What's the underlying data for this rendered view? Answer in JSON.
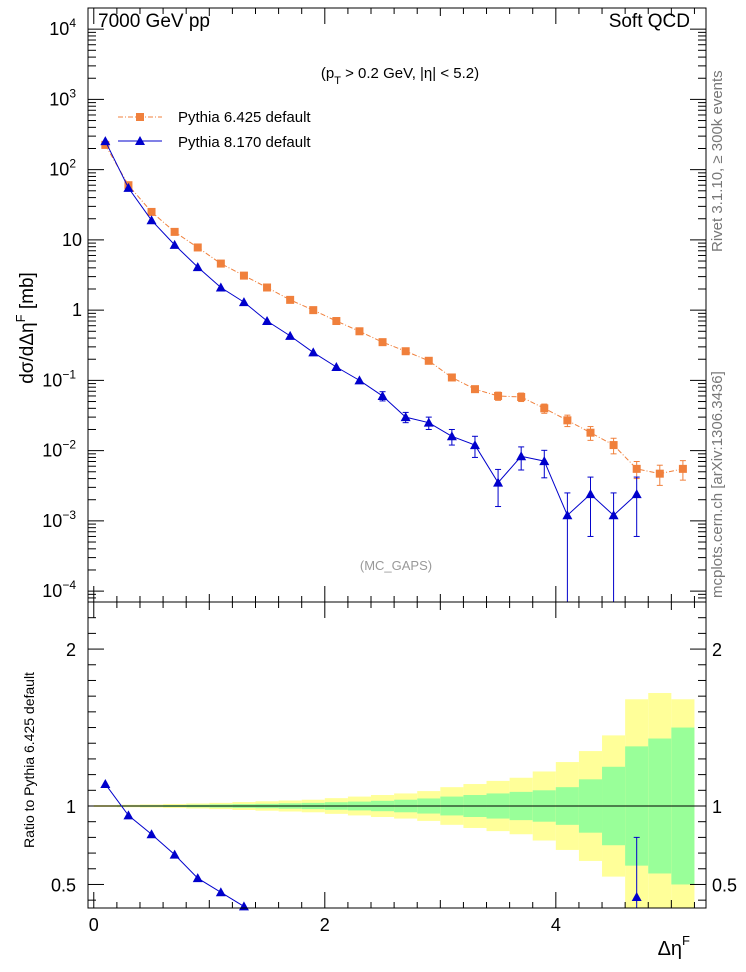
{
  "header": {
    "left": "7000 GeV pp",
    "right": "Soft QCD",
    "side_top": "Rivet 3.1.10, ≥ 300k events",
    "side_bottom": "mcplots.cern.ch [arXiv:1306.3436]"
  },
  "colors": {
    "pythia6": "#f0803c",
    "pythia8": "#0000cc",
    "band_inner": "#99ff99",
    "band_outer": "#ffff99"
  },
  "chart_data": [
    {
      "type": "line",
      "panel": "main",
      "y_scale": "log",
      "ylabel": "dσ/dΔηF [mb]",
      "ylabel_parts": {
        "main": "dσ/dΔη",
        "sup": "F",
        "unit": " [mb]"
      },
      "xlim": [
        -0.05,
        5.3
      ],
      "ylim": [
        7e-05,
        20000
      ],
      "ytick_values": [
        0.0001,
        0.001,
        0.01,
        0.1,
        1,
        10,
        100,
        1000,
        10000
      ],
      "ytick_labels": [
        {
          "base": "10",
          "exp": "−4"
        },
        {
          "base": "10",
          "exp": "−3"
        },
        {
          "base": "10",
          "exp": "−2"
        },
        {
          "base": "10",
          "exp": "−1"
        },
        {
          "base": "1",
          "exp": ""
        },
        {
          "base": "10",
          "exp": ""
        },
        {
          "base": "10",
          "exp": "2"
        },
        {
          "base": "10",
          "exp": "3"
        },
        {
          "base": "10",
          "exp": "4"
        }
      ],
      "annotation": {
        "pre": "(p",
        "sub": "T",
        "post": " > 0.2 GeV, |η| < 5.2)"
      },
      "watermark": "(MC_GAPS)",
      "series": [
        {
          "name": "Pythia 6.425 default",
          "marker": "square",
          "dashed": true,
          "x": [
            0.1,
            0.3,
            0.5,
            0.7,
            0.9,
            1.1,
            1.3,
            1.5,
            1.7,
            1.9,
            2.1,
            2.3,
            2.5,
            2.7,
            2.9,
            3.1,
            3.3,
            3.5,
            3.7,
            3.9,
            4.1,
            4.3,
            4.5,
            4.7,
            4.9,
            5.1
          ],
          "y": [
            225,
            60,
            25,
            13,
            7.8,
            4.6,
            3.1,
            2.1,
            1.4,
            1.0,
            0.7,
            0.5,
            0.35,
            0.26,
            0.19,
            0.11,
            0.075,
            0.06,
            0.058,
            0.04,
            0.027,
            0.018,
            0.012,
            0.0055,
            0.0047,
            0.0055
          ],
          "err": [
            0,
            0,
            0,
            0,
            0,
            0,
            0,
            0,
            0,
            0,
            0,
            0,
            0,
            0,
            0.012,
            0,
            0,
            0.008,
            0.008,
            0.006,
            0.005,
            0.004,
            0.003,
            0.0015,
            0.0015,
            0.0017
          ]
        },
        {
          "name": "Pythia 8.170 default",
          "marker": "triangle",
          "dashed": false,
          "x": [
            0.1,
            0.3,
            0.5,
            0.7,
            0.9,
            1.1,
            1.3,
            1.5,
            1.7,
            1.9,
            2.1,
            2.3,
            2.5,
            2.7,
            2.9,
            3.1,
            3.3,
            3.5,
            3.7,
            3.9,
            4.1,
            4.3,
            4.5,
            4.7
          ],
          "y": [
            255,
            55,
            19,
            8.5,
            4.1,
            2.1,
            1.3,
            0.7,
            0.43,
            0.25,
            0.155,
            0.1,
            0.06,
            0.03,
            0.025,
            0.016,
            0.012,
            0.0035,
            0.0083,
            0.0071,
            0.0012,
            0.0024,
            0.0012,
            0.0024
          ],
          "err": [
            0,
            0,
            0,
            0,
            0,
            0,
            0,
            0,
            0,
            0,
            0,
            0,
            0.009,
            0.005,
            0.005,
            0.004,
            0.004,
            0.0019,
            0.003,
            0.003,
            0.0013,
            0.0018,
            0.0013,
            0.0018
          ]
        }
      ]
    },
    {
      "type": "line",
      "panel": "ratio",
      "y_scale": "linear",
      "ylabel": "Ratio to Pythia 6.425 default",
      "xlabel": "ΔηF",
      "xlabel_parts": {
        "main": "Δη",
        "sup": "F"
      },
      "xlim": [
        -0.05,
        5.3
      ],
      "ylim": [
        0.35,
        2.3
      ],
      "xticks": [
        0,
        2,
        4
      ],
      "xtick_labels": [
        "0",
        "2",
        "4"
      ],
      "yticks": [
        0.5,
        1,
        2
      ],
      "ytick_labels": [
        "0.5",
        "1",
        "2"
      ],
      "reference_line": 1,
      "band": {
        "x_edges": [
          0.0,
          0.2,
          0.4,
          0.6,
          0.8,
          1.0,
          1.2,
          1.4,
          1.6,
          1.8,
          2.0,
          2.2,
          2.4,
          2.6,
          2.8,
          3.0,
          3.2,
          3.4,
          3.6,
          3.8,
          4.0,
          4.2,
          4.4,
          4.6,
          4.8,
          5.0,
          5.2
        ],
        "inner": [
          0.003,
          0.004,
          0.005,
          0.006,
          0.008,
          0.01,
          0.012,
          0.014,
          0.017,
          0.02,
          0.024,
          0.028,
          0.033,
          0.04,
          0.048,
          0.06,
          0.07,
          0.08,
          0.09,
          0.1,
          0.12,
          0.17,
          0.25,
          0.38,
          0.43,
          0.5
        ],
        "outer": [
          0.006,
          0.008,
          0.01,
          0.013,
          0.016,
          0.02,
          0.025,
          0.03,
          0.035,
          0.04,
          0.05,
          0.06,
          0.07,
          0.08,
          0.095,
          0.12,
          0.14,
          0.16,
          0.18,
          0.22,
          0.28,
          0.35,
          0.45,
          0.68,
          0.72,
          0.68
        ]
      },
      "series": [
        {
          "name": "Pythia 8.170 default",
          "x": [
            0.1,
            0.3,
            0.5,
            0.7,
            0.9,
            1.1,
            1.3,
            4.7
          ],
          "y": [
            1.14,
            0.94,
            0.82,
            0.69,
            0.54,
            0.45,
            0.36,
            0.42
          ],
          "err": [
            0,
            0,
            0,
            0,
            0,
            0,
            0,
            0.38
          ],
          "connected": [
            true,
            true,
            true,
            true,
            true,
            true,
            true,
            false
          ]
        }
      ]
    }
  ]
}
